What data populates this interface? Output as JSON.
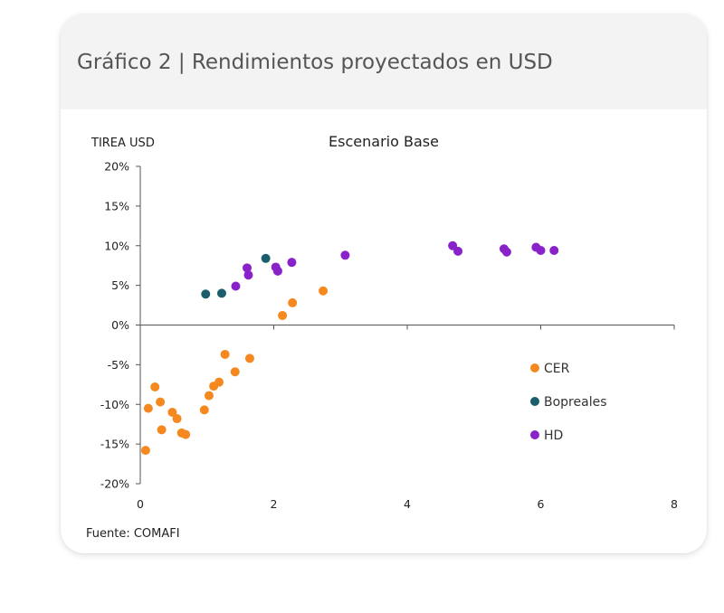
{
  "card": {
    "title": "Gráfico 2 | Rendimientos proyectados en USD"
  },
  "chart_data": {
    "type": "scatter",
    "title": "Escenario Base",
    "ylabel": "TIREA USD",
    "xlabel": "",
    "source": "Fuente: COMAFI",
    "xlim": [
      0,
      8
    ],
    "ylim": [
      -20,
      20
    ],
    "x_ticks": [
      0,
      2,
      4,
      6,
      8
    ],
    "y_ticks": [
      20,
      15,
      10,
      5,
      0,
      -5,
      -10,
      -15,
      -20
    ],
    "y_tick_labels": [
      "20%",
      "15%",
      "10%",
      "5%",
      "0%",
      "-5%",
      "-10%",
      "-15%",
      "-20%"
    ],
    "legend_position": "right",
    "series": [
      {
        "name": "CER",
        "color": "#F5891F",
        "points": [
          [
            0.08,
            -15.8
          ],
          [
            0.12,
            -10.5
          ],
          [
            0.22,
            -7.8
          ],
          [
            0.3,
            -9.7
          ],
          [
            0.32,
            -13.2
          ],
          [
            0.48,
            -11.0
          ],
          [
            0.55,
            -11.8
          ],
          [
            0.62,
            -13.6
          ],
          [
            0.68,
            -13.8
          ],
          [
            0.96,
            -10.7
          ],
          [
            1.03,
            -8.9
          ],
          [
            1.1,
            -7.7
          ],
          [
            1.18,
            -7.2
          ],
          [
            1.27,
            -3.7
          ],
          [
            1.42,
            -5.9
          ],
          [
            1.64,
            -4.2
          ],
          [
            2.13,
            1.2
          ],
          [
            2.28,
            2.8
          ],
          [
            2.74,
            4.3
          ]
        ]
      },
      {
        "name": "Bopreales",
        "color": "#1A5E6B",
        "points": [
          [
            0.98,
            3.9
          ],
          [
            1.22,
            4.0
          ],
          [
            1.88,
            8.4
          ]
        ]
      },
      {
        "name": "HD",
        "color": "#8A22C9",
        "points": [
          [
            1.43,
            4.9
          ],
          [
            1.6,
            7.2
          ],
          [
            1.62,
            6.3
          ],
          [
            2.03,
            7.3
          ],
          [
            2.06,
            6.8
          ],
          [
            2.27,
            7.9
          ],
          [
            3.07,
            8.8
          ],
          [
            4.68,
            10.0
          ],
          [
            4.76,
            9.3
          ],
          [
            5.45,
            9.6
          ],
          [
            5.49,
            9.2
          ],
          [
            5.93,
            9.8
          ],
          [
            6.0,
            9.4
          ],
          [
            6.2,
            9.4
          ]
        ]
      }
    ]
  }
}
